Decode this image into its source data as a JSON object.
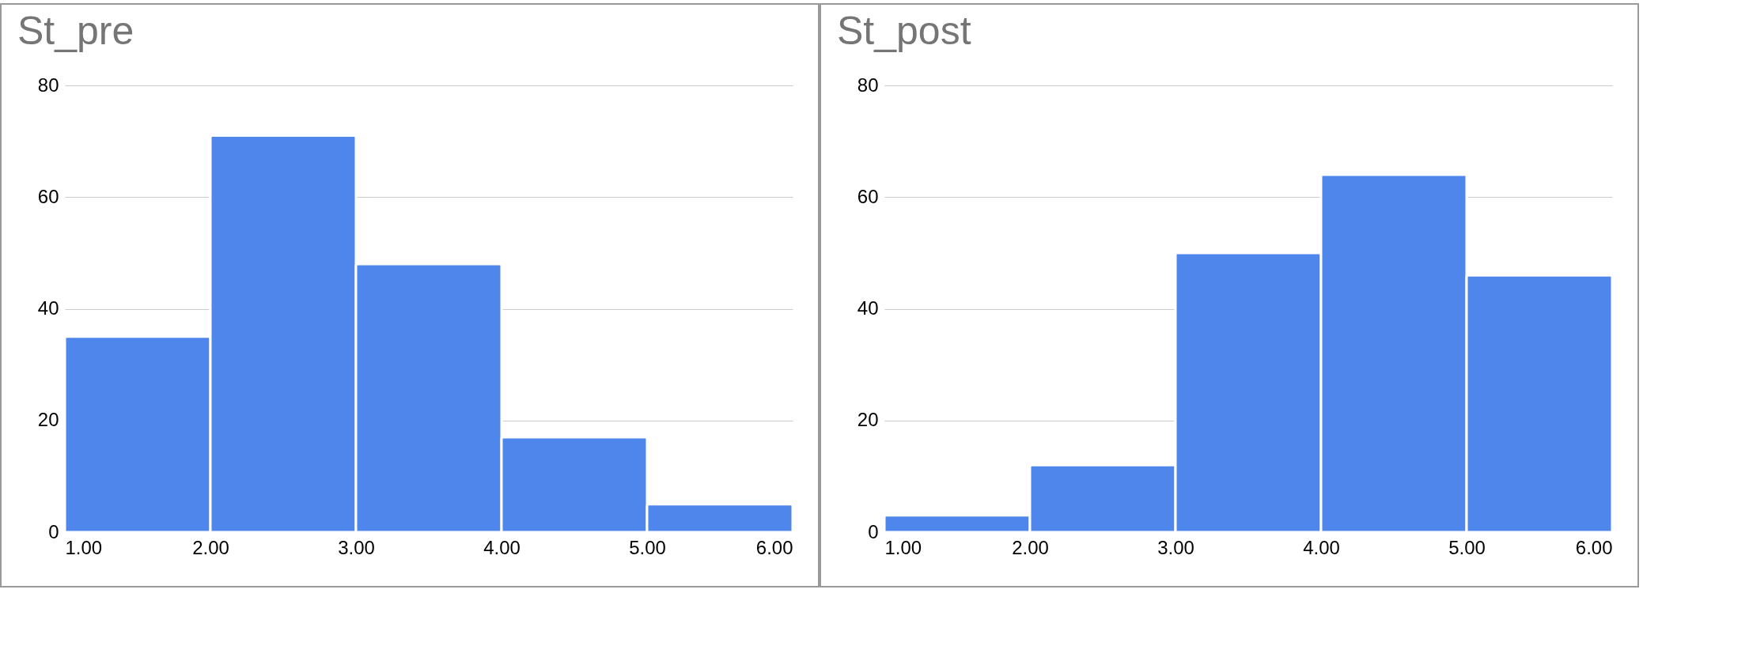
{
  "chart_data": [
    {
      "type": "histogram",
      "title": "St_pre",
      "bins": [
        1,
        2,
        3,
        4,
        5,
        6
      ],
      "values": [
        35,
        71,
        48,
        17,
        5
      ],
      "color": "#4f86ec",
      "xlim": [
        1,
        6
      ],
      "xticks": [
        {
          "value": 1,
          "label": "1.00"
        },
        {
          "value": 2,
          "label": "2.00"
        },
        {
          "value": 3,
          "label": "3.00"
        },
        {
          "value": 4,
          "label": "4.00"
        },
        {
          "value": 5,
          "label": "5.00"
        },
        {
          "value": 6,
          "label": "6.00"
        }
      ],
      "ylim": [
        0,
        80
      ],
      "yticks": [
        0,
        20,
        40,
        60,
        80
      ],
      "grid": "y"
    },
    {
      "type": "histogram",
      "title": "St_post",
      "bins": [
        1,
        2,
        3,
        4,
        5,
        6
      ],
      "values": [
        3,
        12,
        50,
        64,
        46
      ],
      "color": "#4f86ec",
      "xlim": [
        1,
        6
      ],
      "xticks": [
        {
          "value": 1,
          "label": "1.00"
        },
        {
          "value": 2,
          "label": "2.00"
        },
        {
          "value": 3,
          "label": "3.00"
        },
        {
          "value": 4,
          "label": "4.00"
        },
        {
          "value": 5,
          "label": "5.00"
        },
        {
          "value": 6,
          "label": "6.00"
        }
      ],
      "ylim": [
        0,
        80
      ],
      "yticks": [
        0,
        20,
        40,
        60,
        80
      ],
      "grid": "y"
    }
  ]
}
